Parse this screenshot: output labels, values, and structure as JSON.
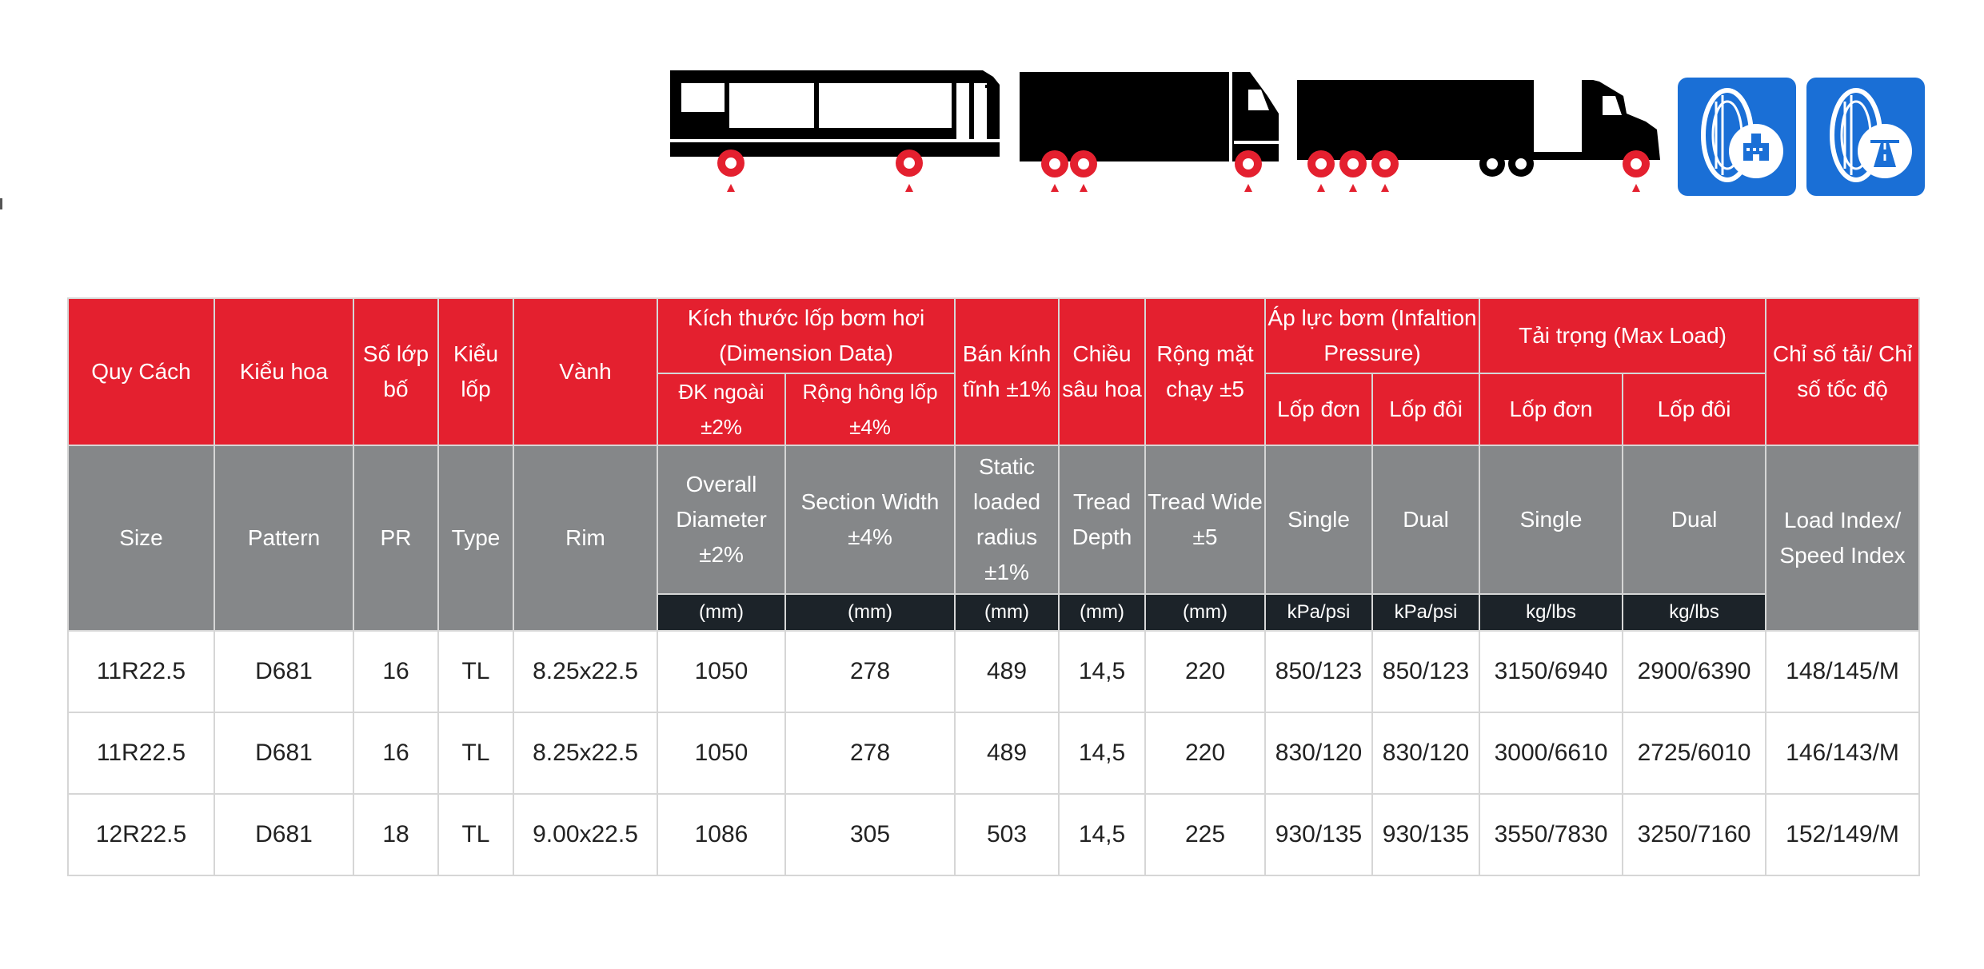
{
  "header_vn": {
    "size": "Quy Cách",
    "pattern": "Kiểu hoa",
    "pr": "Số lớp bố",
    "type": "Kiểu lốp",
    "rim": "Vành",
    "dimension": "Kích thước lốp bơm hơi (Dimension Data)",
    "od": "ĐK ngoài ±2%",
    "sw": "Rộng hông lốp ±4%",
    "slr": "Bán kính tĩnh ±1%",
    "depth": "Chiều sâu hoa",
    "tread_wide": "Rộng mặt chạy ±5",
    "pressure": "Áp lực bơm (Infaltion Pressure)",
    "pressure_single": "Lốp đơn",
    "pressure_dual": "Lốp đôi",
    "load": "Tải trọng (Max Load)",
    "load_single": "Lốp đơn",
    "load_dual": "Lốp đôi",
    "index": "Chỉ số tải/ Chỉ số tốc độ"
  },
  "header_en": {
    "size": "Size",
    "pattern": "Pattern",
    "pr": "PR",
    "type": "Type",
    "rim": "Rim",
    "od": "Overall Diameter ±2%",
    "sw": "Section Width ±4%",
    "slr": "Static loaded radius ±1%",
    "depth": "Tread Depth",
    "tread_wide": "Tread Wide ±5",
    "pressure_single": "Single",
    "pressure_dual": "Dual",
    "load_single": "Single",
    "load_dual": "Dual",
    "index": "Load Index/ Speed Index"
  },
  "units": {
    "od": "(mm)",
    "sw": "(mm)",
    "slr": "(mm)",
    "depth": "(mm)",
    "tread_wide": "(mm)",
    "pressure_single": "kPa/psi",
    "pressure_dual": "kPa/psi",
    "load_single": "kg/lbs",
    "load_dual": "kg/lbs"
  },
  "rows": [
    [
      "11R22.5",
      "D681",
      "16",
      "TL",
      "8.25x22.5",
      "1050",
      "278",
      "489",
      "14,5",
      "220",
      "850/123",
      "850/123",
      "3150/6940",
      "2900/6390",
      "148/145/M"
    ],
    [
      "11R22.5",
      "D681",
      "16",
      "TL",
      "8.25x22.5",
      "1050",
      "278",
      "489",
      "14,5",
      "220",
      "830/120",
      "830/120",
      "3000/6610",
      "2725/6010",
      "146/143/M"
    ],
    [
      "12R22.5",
      "D681",
      "18",
      "TL",
      "9.00x22.5",
      "1086",
      "305",
      "503",
      "14,5",
      "225",
      "930/135",
      "930/135",
      "3550/7830",
      "3250/7160",
      "152/149/M"
    ]
  ],
  "icons": {
    "bus": "bus-icon",
    "truck": "box-truck-icon",
    "semi": "semi-trailer-icon",
    "city": "urban-tire-icon",
    "highway": "highway-tire-icon"
  },
  "colors": {
    "header_red": "#e4202f",
    "header_gray": "#858789",
    "unit_dark": "#1c2329",
    "badge_blue": "#1a6fd6",
    "wheel_red": "#e4202f"
  }
}
